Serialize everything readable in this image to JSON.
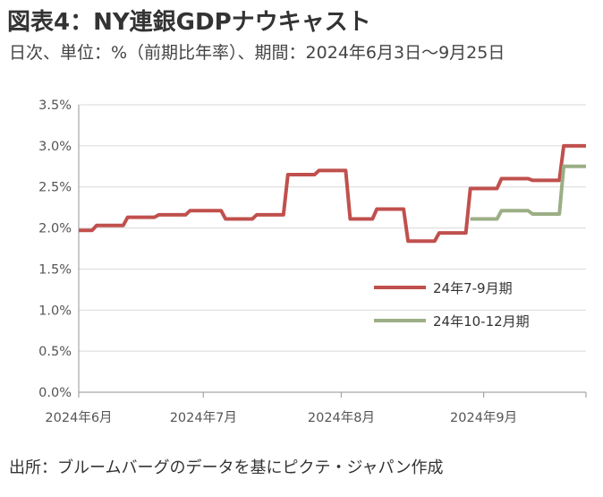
{
  "title": "図表4：NY連銀GDPナウキャスト",
  "subtitle": "日次、単位：%（前期比年率）、期間：2024年6月3日～9月25日",
  "source": "出所：ブルームバーグのデータを基にピクテ・ジャパン作成",
  "chart_data": {
    "type": "line",
    "title": "",
    "xlabel": "",
    "ylabel": "",
    "x_tick_labels": [
      "2024年6月",
      "2024年7月",
      "2024年8月",
      "2024年9月"
    ],
    "x_tick_dates": [
      "2024-06-03",
      "2024-07-01",
      "2024-08-01",
      "2024-09-02"
    ],
    "xlim": [
      "2024-06-03",
      "2024-09-25"
    ],
    "y_tick_labels": [
      "0.0%",
      "0.5%",
      "1.0%",
      "1.5%",
      "2.0%",
      "2.5%",
      "3.0%",
      "3.5%"
    ],
    "ylim": [
      0,
      3.5
    ],
    "grid": "horizontal",
    "legend_position": "right-middle",
    "series": [
      {
        "name": "24年7-9月期",
        "color": "#c0504d",
        "points": [
          [
            "2024-06-03",
            1.97
          ],
          [
            "2024-06-06",
            1.97
          ],
          [
            "2024-06-07",
            2.03
          ],
          [
            "2024-06-13",
            2.03
          ],
          [
            "2024-06-14",
            2.13
          ],
          [
            "2024-06-20",
            2.13
          ],
          [
            "2024-06-21",
            2.16
          ],
          [
            "2024-06-27",
            2.16
          ],
          [
            "2024-06-28",
            2.21
          ],
          [
            "2024-07-05",
            2.21
          ],
          [
            "2024-07-06",
            2.11
          ],
          [
            "2024-07-12",
            2.11
          ],
          [
            "2024-07-13",
            2.16
          ],
          [
            "2024-07-19",
            2.16
          ],
          [
            "2024-07-20",
            2.65
          ],
          [
            "2024-07-26",
            2.65
          ],
          [
            "2024-07-27",
            2.7
          ],
          [
            "2024-08-02",
            2.7
          ],
          [
            "2024-08-03",
            2.11
          ],
          [
            "2024-08-08",
            2.11
          ],
          [
            "2024-08-09",
            2.23
          ],
          [
            "2024-08-15",
            2.23
          ],
          [
            "2024-08-16",
            1.84
          ],
          [
            "2024-08-22",
            1.84
          ],
          [
            "2024-08-23",
            1.94
          ],
          [
            "2024-08-29",
            1.94
          ],
          [
            "2024-08-30",
            2.48
          ],
          [
            "2024-09-05",
            2.48
          ],
          [
            "2024-09-06",
            2.6
          ],
          [
            "2024-09-12",
            2.6
          ],
          [
            "2024-09-13",
            2.58
          ],
          [
            "2024-09-19",
            2.58
          ],
          [
            "2024-09-20",
            3.0
          ],
          [
            "2024-09-25",
            3.0
          ]
        ]
      },
      {
        "name": "24年10-12月期",
        "color": "#9bae85",
        "points": [
          [
            "2024-08-30",
            2.11
          ],
          [
            "2024-09-05",
            2.11
          ],
          [
            "2024-09-06",
            2.21
          ],
          [
            "2024-09-12",
            2.21
          ],
          [
            "2024-09-13",
            2.17
          ],
          [
            "2024-09-19",
            2.17
          ],
          [
            "2024-09-20",
            2.75
          ],
          [
            "2024-09-25",
            2.75
          ]
        ]
      }
    ]
  }
}
